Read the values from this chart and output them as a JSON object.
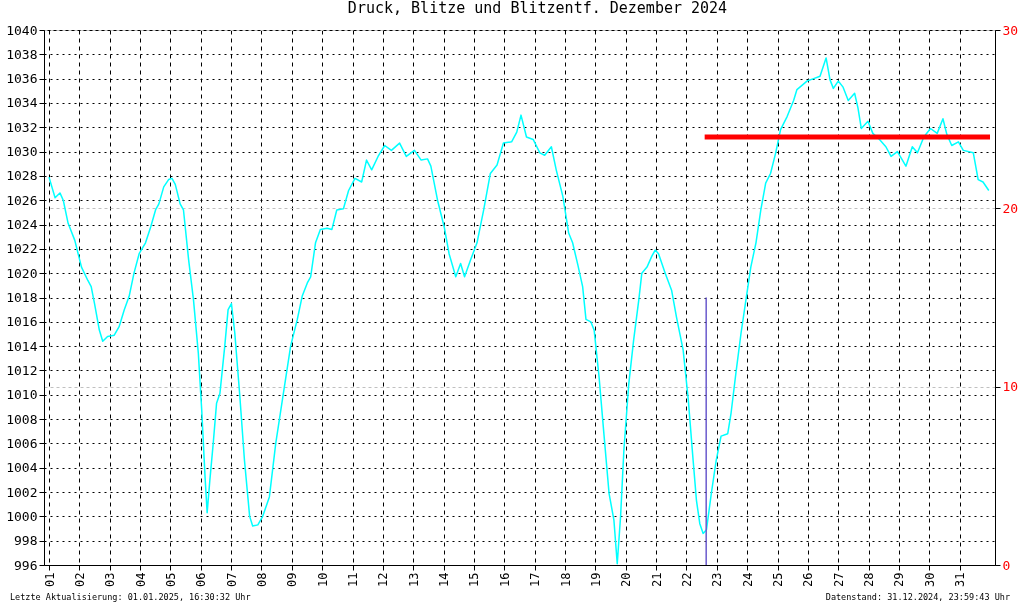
{
  "chart_data": {
    "type": "line",
    "title": "Druck, Blitze und Blitzentf. Dezember 2024",
    "xlim": [
      1,
      32
    ],
    "xticks": [
      {
        "value": 1,
        "label": "01"
      },
      {
        "value": 2,
        "label": "02"
      },
      {
        "value": 3,
        "label": "03"
      },
      {
        "value": 4,
        "label": "04"
      },
      {
        "value": 5,
        "label": "05"
      },
      {
        "value": 6,
        "label": "06"
      },
      {
        "value": 7,
        "label": "07"
      },
      {
        "value": 8,
        "label": "08"
      },
      {
        "value": 9,
        "label": "09"
      },
      10,
      11,
      12,
      13,
      14,
      15,
      16,
      17,
      18,
      19,
      20,
      21,
      22,
      23,
      24,
      25,
      26,
      27,
      28,
      29,
      30,
      31
    ],
    "ylim": [
      996,
      1040
    ],
    "yticks": [
      996,
      998,
      1000,
      1002,
      1004,
      1006,
      1008,
      1010,
      1012,
      1014,
      1016,
      1018,
      1020,
      1022,
      1024,
      1026,
      1028,
      1030,
      1032,
      1034,
      1036,
      1038,
      1040
    ],
    "y2lim": [
      0,
      30
    ],
    "y2ticks": [
      0,
      10,
      20,
      30
    ],
    "grid": true,
    "series": [
      {
        "color": "#00ffff",
        "x": [
          1.0,
          1.2,
          1.36,
          1.47,
          1.63,
          1.85,
          1.96,
          2.07,
          2.28,
          2.39,
          2.5,
          2.66,
          2.77,
          2.93,
          3.15,
          3.31,
          3.48,
          3.64,
          3.8,
          3.97,
          4.18,
          4.35,
          4.51,
          4.62,
          4.78,
          4.94,
          5.05,
          5.16,
          5.32,
          5.43,
          5.6,
          5.76,
          5.92,
          6.03,
          6.14,
          6.21,
          6.3,
          6.41,
          6.52,
          6.63,
          6.79,
          6.9,
          7.01,
          7.12,
          7.28,
          7.44,
          7.61,
          7.71,
          7.88,
          8.04,
          8.26,
          8.47,
          8.69,
          8.96,
          9.18,
          9.34,
          9.51,
          9.62,
          9.78,
          9.94,
          10.16,
          10.32,
          10.48,
          10.7,
          10.87,
          11.08,
          11.3,
          11.46,
          11.63,
          11.84,
          12.06,
          12.28,
          12.55,
          12.77,
          13.04,
          13.26,
          13.47,
          13.58,
          13.8,
          14.02,
          14.18,
          14.4,
          14.56,
          14.69,
          14.89,
          15.1,
          15.32,
          15.54,
          15.76,
          15.97,
          16.24,
          16.41,
          16.55,
          16.73,
          16.95,
          17.17,
          17.33,
          17.55,
          17.71,
          17.93,
          18.12,
          18.25,
          18.42,
          18.58,
          18.69,
          18.85,
          18.96,
          19.12,
          19.28,
          19.45,
          19.61,
          19.72,
          19.83,
          19.94,
          20.1,
          20.26,
          20.43,
          20.53,
          20.7,
          20.86,
          20.97,
          21.08,
          21.3,
          21.51,
          21.67,
          21.89,
          22.06,
          22.22,
          22.33,
          22.44,
          22.55,
          22.66,
          22.82,
          22.98,
          23.14,
          23.36,
          23.47,
          23.63,
          23.8,
          23.96,
          24.12,
          24.29,
          24.45,
          24.61,
          24.77,
          24.94,
          25.1,
          25.32,
          25.53,
          25.64,
          25.97,
          26.19,
          26.4,
          26.6,
          26.73,
          26.84,
          27.0,
          27.16,
          27.33,
          27.54,
          27.65,
          27.76,
          27.98,
          28.14,
          28.36,
          28.57,
          28.74,
          28.95,
          29.23,
          29.44,
          29.61,
          29.82,
          30.04,
          30.26,
          30.45,
          30.58,
          30.74,
          30.96,
          31.12,
          31.45,
          31.61,
          31.77,
          31.96
        ],
        "values": [
          1027.9,
          1026.2,
          1026.6,
          1026.0,
          1024.1,
          1022.7,
          1021.6,
          1020.5,
          1019.4,
          1018.9,
          1017.5,
          1015.3,
          1014.4,
          1014.8,
          1014.9,
          1015.6,
          1017.0,
          1018.1,
          1020.0,
          1021.6,
          1022.5,
          1023.8,
          1025.2,
          1025.7,
          1027.1,
          1027.7,
          1027.8,
          1027.3,
          1025.7,
          1025.2,
          1021.1,
          1017.8,
          1013.4,
          1008.8,
          1003.3,
          1000.3,
          1003.0,
          1006.0,
          1009.3,
          1010.1,
          1014.0,
          1017.0,
          1017.5,
          1015.1,
          1010.1,
          1004.6,
          1000.0,
          999.2,
          999.3,
          1000.0,
          1001.6,
          1006.0,
          1009.6,
          1014.0,
          1016.2,
          1018.1,
          1019.2,
          1019.7,
          1022.5,
          1023.6,
          1023.7,
          1023.6,
          1025.2,
          1025.3,
          1026.8,
          1027.8,
          1027.5,
          1029.3,
          1028.5,
          1029.6,
          1030.5,
          1030.1,
          1030.7,
          1029.6,
          1030.1,
          1029.3,
          1029.4,
          1028.8,
          1026.0,
          1023.8,
          1021.6,
          1019.7,
          1020.8,
          1019.7,
          1021.1,
          1022.5,
          1025.2,
          1028.2,
          1028.9,
          1030.7,
          1030.8,
          1031.6,
          1033.0,
          1031.2,
          1031.0,
          1029.9,
          1029.7,
          1030.4,
          1028.5,
          1026.3,
          1023.3,
          1022.5,
          1020.7,
          1018.9,
          1016.2,
          1016.0,
          1015.3,
          1011.5,
          1006.8,
          1001.9,
          999.7,
          996.1,
          1000.0,
          1005.5,
          1010.9,
          1014.5,
          1017.8,
          1020.0,
          1020.5,
          1021.4,
          1021.9,
          1021.6,
          1020.0,
          1018.6,
          1016.4,
          1013.7,
          1009.6,
          1004.6,
          1001.3,
          999.4,
          998.6,
          998.9,
          1001.9,
          1004.6,
          1006.6,
          1006.8,
          1008.5,
          1011.8,
          1015.1,
          1017.8,
          1020.5,
          1022.5,
          1025.2,
          1027.4,
          1028.2,
          1029.9,
          1031.8,
          1032.9,
          1034.2,
          1035.1,
          1035.8,
          1036.0,
          1036.2,
          1037.7,
          1035.9,
          1035.2,
          1035.8,
          1035.3,
          1034.2,
          1034.8,
          1033.6,
          1031.9,
          1032.5,
          1031.5,
          1031.0,
          1030.4,
          1029.6,
          1030.0,
          1028.8,
          1030.4,
          1029.9,
          1031.2,
          1031.9,
          1031.5,
          1032.7,
          1031.4,
          1030.5,
          1030.8,
          1030.1,
          1029.9,
          1027.7,
          1027.5,
          1026.8
        ]
      },
      {
        "type": "bar",
        "axis": "y2",
        "color": "#6a5acd",
        "x": [
          22.65
        ],
        "values": [
          15
        ]
      },
      {
        "type": "line",
        "axis": "y2",
        "color": "#ff0000",
        "x": [
          22.6,
          32
        ],
        "values": [
          24,
          24
        ]
      }
    ],
    "annotations": [
      "Letzte Aktualisierung: 01.01.2025, 16:30:32 Uhr",
      "Datenstand: 31.12.2024, 23:59:43 Uhr"
    ]
  }
}
